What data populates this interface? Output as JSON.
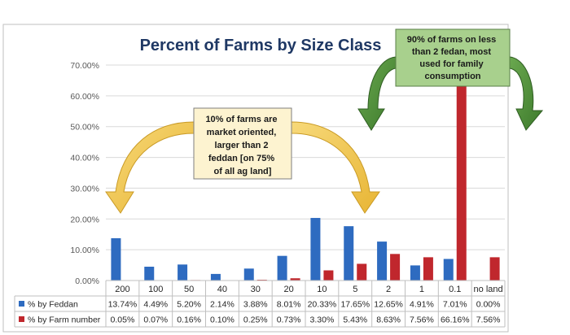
{
  "chart_data": {
    "type": "bar",
    "title": "Percent of Farms by Size Class",
    "categories": [
      "200",
      "100",
      "50",
      "40",
      "30",
      "20",
      "10",
      "5",
      "2",
      "1",
      "0.1",
      "no land"
    ],
    "ylim": [
      0,
      70
    ],
    "y_ticks": [
      "0.00%",
      "10.00%",
      "20.00%",
      "30.00%",
      "40.00%",
      "50.00%",
      "60.00%",
      "70.00%"
    ],
    "grid": true,
    "legend_placement": "table-below",
    "series": [
      {
        "name": "% by Feddan",
        "color": "#2e6bc0",
        "values": [
          13.74,
          4.49,
          5.2,
          2.14,
          3.88,
          8.01,
          20.33,
          17.65,
          12.65,
          4.91,
          7.01,
          0.0
        ],
        "labels": [
          "13.74%",
          "4.49%",
          "5.20%",
          "2.14%",
          "3.88%",
          "8.01%",
          "20.33%",
          "17.65%",
          "12.65%",
          "4.91%",
          "7.01%",
          "0.00%"
        ]
      },
      {
        "name": "% by Farm number",
        "color": "#c0272d",
        "values": [
          0.05,
          0.07,
          0.16,
          0.1,
          0.25,
          0.73,
          3.3,
          5.43,
          8.63,
          7.56,
          66.16,
          7.56
        ],
        "labels": [
          "0.05%",
          "0.07%",
          "0.16%",
          "0.10%",
          "0.25%",
          "0.73%",
          "3.30%",
          "5.43%",
          "8.63%",
          "7.56%",
          "66.16%",
          "7.56%"
        ]
      }
    ],
    "annotations": [
      {
        "text_lines": [
          "10% of farms are",
          "market oriented,",
          "larger than 2",
          "feddan [on 75%",
          "of all ag land]"
        ],
        "fill": "#fdf3d0",
        "arrow_color": "#f2c84b"
      },
      {
        "text_lines": [
          "90% of farms on less",
          "than 2 fedan, most",
          "used for family",
          "consumption"
        ],
        "fill": "#a8d08d",
        "arrow_color": "#4f8a3a"
      }
    ]
  }
}
